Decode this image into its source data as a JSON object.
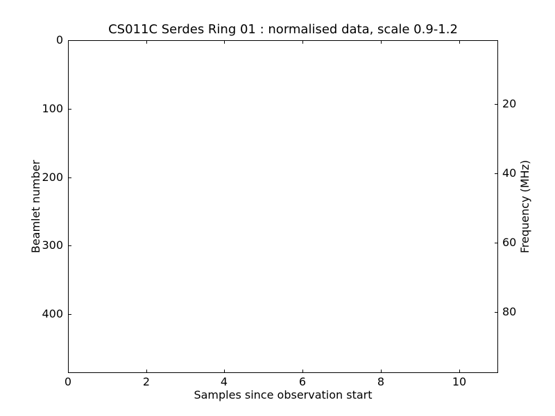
{
  "window": {
    "background_color": "#ffffff"
  },
  "chart_data": {
    "type": "heatmap",
    "title": "CS011C Serdes Ring 01 : normalised data, scale 0.9-1.2",
    "xlabel": "Samples since observation start",
    "ylabel_left": "Beamlet number",
    "ylabel_right": "Frequency (MHz)",
    "xlim": [
      0,
      11
    ],
    "xticks": [
      0,
      2,
      4,
      6,
      8,
      10
    ],
    "ylim_left": [
      0,
      486
    ],
    "yticks_left": [
      0,
      100,
      200,
      300,
      400
    ],
    "y_left_direction": "increases-downward",
    "ylim_right": [
      1.6,
      97.6
    ],
    "yticks_right": [
      20,
      40,
      60,
      80
    ],
    "y_right_direction": "increases-downward",
    "values": [],
    "note": "plot area is blank white - no visible data rendered",
    "grid": false,
    "legend": null,
    "tick_direction": "in",
    "colors": {
      "axis": "#000000",
      "text": "#000000",
      "background": "#ffffff"
    }
  }
}
